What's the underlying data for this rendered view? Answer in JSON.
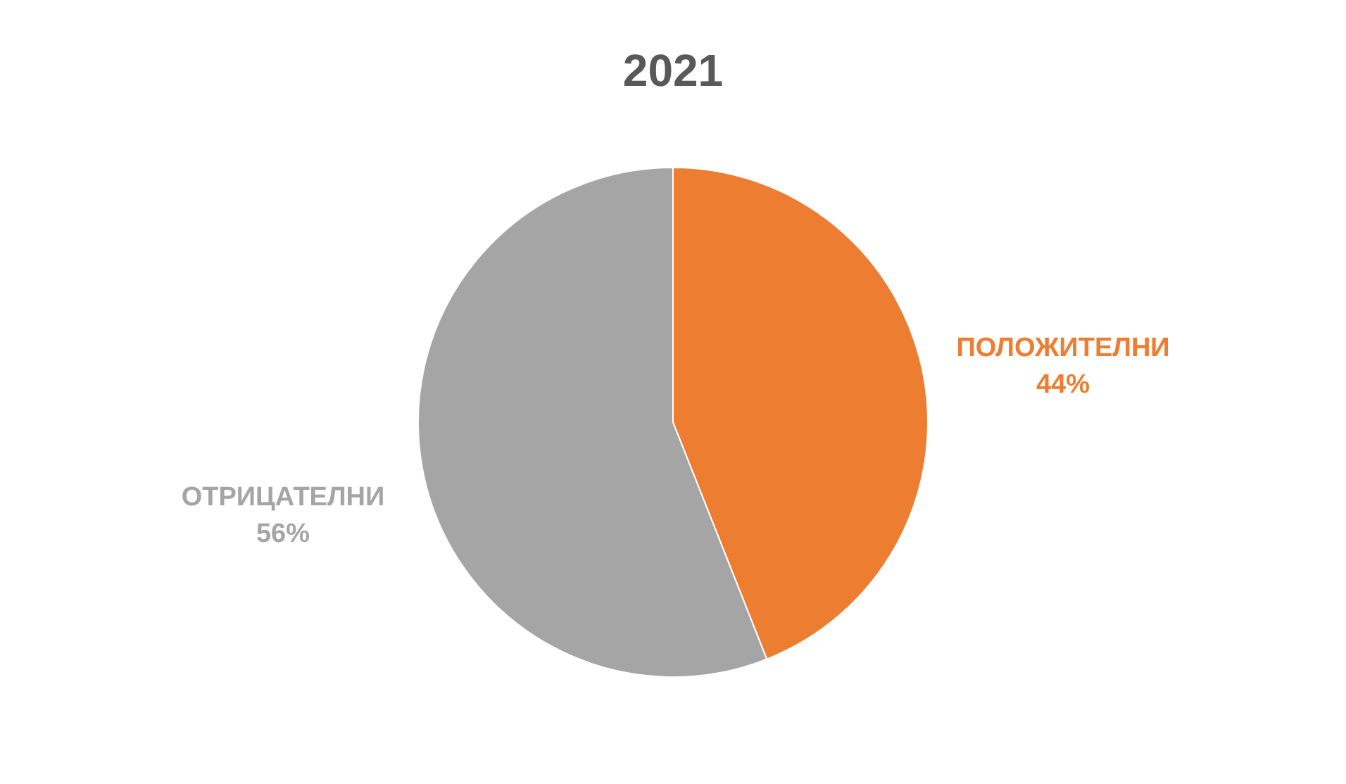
{
  "chart_data": {
    "type": "pie",
    "title": "2021",
    "categories": [
      "ПОЛОЖИТЕЛНИ",
      "ОТРИЦАТЕЛНИ"
    ],
    "values": [
      44,
      56
    ],
    "value_labels": [
      "44%",
      "56%"
    ],
    "colors": [
      "#ed7d31",
      "#a5a5a5"
    ],
    "legend": false
  }
}
